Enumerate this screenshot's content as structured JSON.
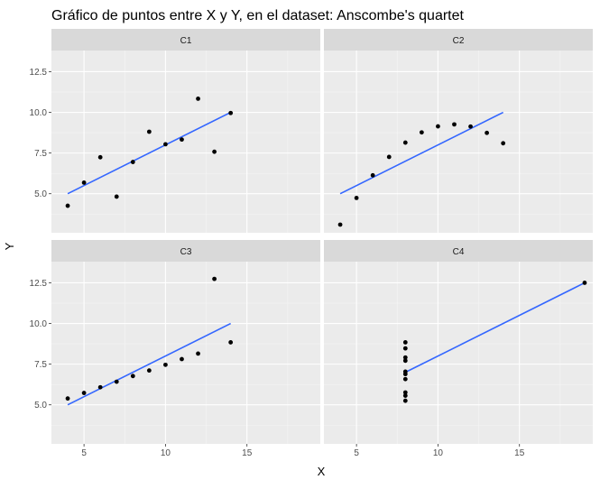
{
  "chart_data": {
    "type": "scatter",
    "title": "Gráfico de puntos entre X y Y, en el dataset: Anscombe's quartet",
    "xlabel": "X",
    "ylabel": "Y",
    "facet_layout": "2x2 grid, shared axes",
    "xlim": [
      3,
      19.5
    ],
    "ylim": [
      2.6,
      13.8
    ],
    "x_ticks": [
      5,
      10,
      15
    ],
    "y_ticks": [
      5.0,
      7.5,
      10.0,
      12.5
    ],
    "x_tick_labels": [
      "5",
      "10",
      "15"
    ],
    "y_tick_labels": [
      "5.0",
      "7.5",
      "10.0",
      "12.5"
    ],
    "grid": true,
    "point_color": "#000000",
    "line_color": "#3366ff",
    "panel_background": "#ebebeb",
    "strip_background": "#d9d9d9",
    "panels": [
      {
        "label": "C1",
        "x": [
          10,
          8,
          13,
          9,
          11,
          14,
          6,
          4,
          12,
          7,
          5
        ],
        "y": [
          8.04,
          6.95,
          7.58,
          8.81,
          8.33,
          9.96,
          7.24,
          4.26,
          10.84,
          4.82,
          5.68
        ],
        "fit": {
          "x": [
            4,
            14
          ],
          "y": [
            5.0,
            10.0
          ]
        }
      },
      {
        "label": "C2",
        "x": [
          10,
          8,
          13,
          9,
          11,
          14,
          6,
          4,
          12,
          7,
          5
        ],
        "y": [
          9.14,
          8.14,
          8.74,
          8.77,
          9.26,
          8.1,
          6.13,
          3.1,
          9.13,
          7.26,
          4.74
        ],
        "fit": {
          "x": [
            4,
            14
          ],
          "y": [
            5.0,
            10.0
          ]
        }
      },
      {
        "label": "C3",
        "x": [
          10,
          8,
          13,
          9,
          11,
          14,
          6,
          4,
          12,
          7,
          5
        ],
        "y": [
          7.46,
          6.77,
          12.74,
          7.11,
          7.81,
          8.84,
          6.08,
          5.39,
          8.15,
          6.42,
          5.73
        ],
        "fit": {
          "x": [
            4,
            14
          ],
          "y": [
            5.0,
            10.0
          ]
        }
      },
      {
        "label": "C4",
        "x": [
          8,
          8,
          8,
          8,
          8,
          8,
          8,
          19,
          8,
          8,
          8
        ],
        "y": [
          6.58,
          5.76,
          7.71,
          8.84,
          8.47,
          7.04,
          5.25,
          12.5,
          5.56,
          7.91,
          6.89
        ],
        "fit": {
          "x": [
            8,
            19
          ],
          "y": [
            7.0,
            12.5
          ]
        }
      }
    ]
  }
}
